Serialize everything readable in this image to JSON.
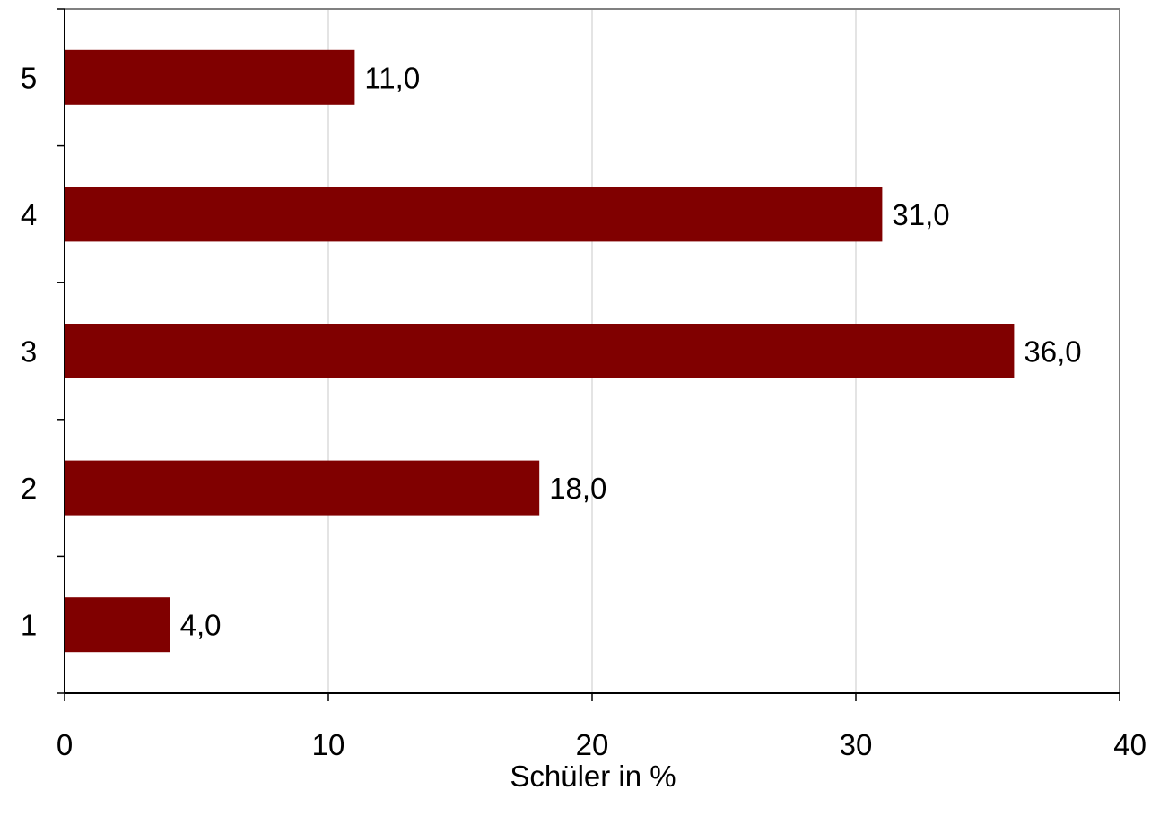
{
  "chart_data": {
    "type": "bar",
    "orientation": "horizontal",
    "categories": [
      "1",
      "2",
      "3",
      "4",
      "5"
    ],
    "values": [
      4.0,
      18.0,
      36.0,
      31.0,
      11.0
    ],
    "data_labels": [
      "4,0",
      "18,0",
      "36,0",
      "31,0",
      "11,0"
    ],
    "title": "",
    "xlabel": "Schüler in %",
    "ylabel": "",
    "xlim": [
      0,
      40
    ],
    "x_ticks": [
      0,
      10,
      20,
      30,
      40
    ],
    "x_tick_labels": [
      "0",
      "10",
      "20",
      "30",
      "40"
    ],
    "grid": "vertical",
    "legend": "none",
    "bar_color": "#800000",
    "grid_color": "#c8c8c8",
    "frame_color": "#808080"
  }
}
